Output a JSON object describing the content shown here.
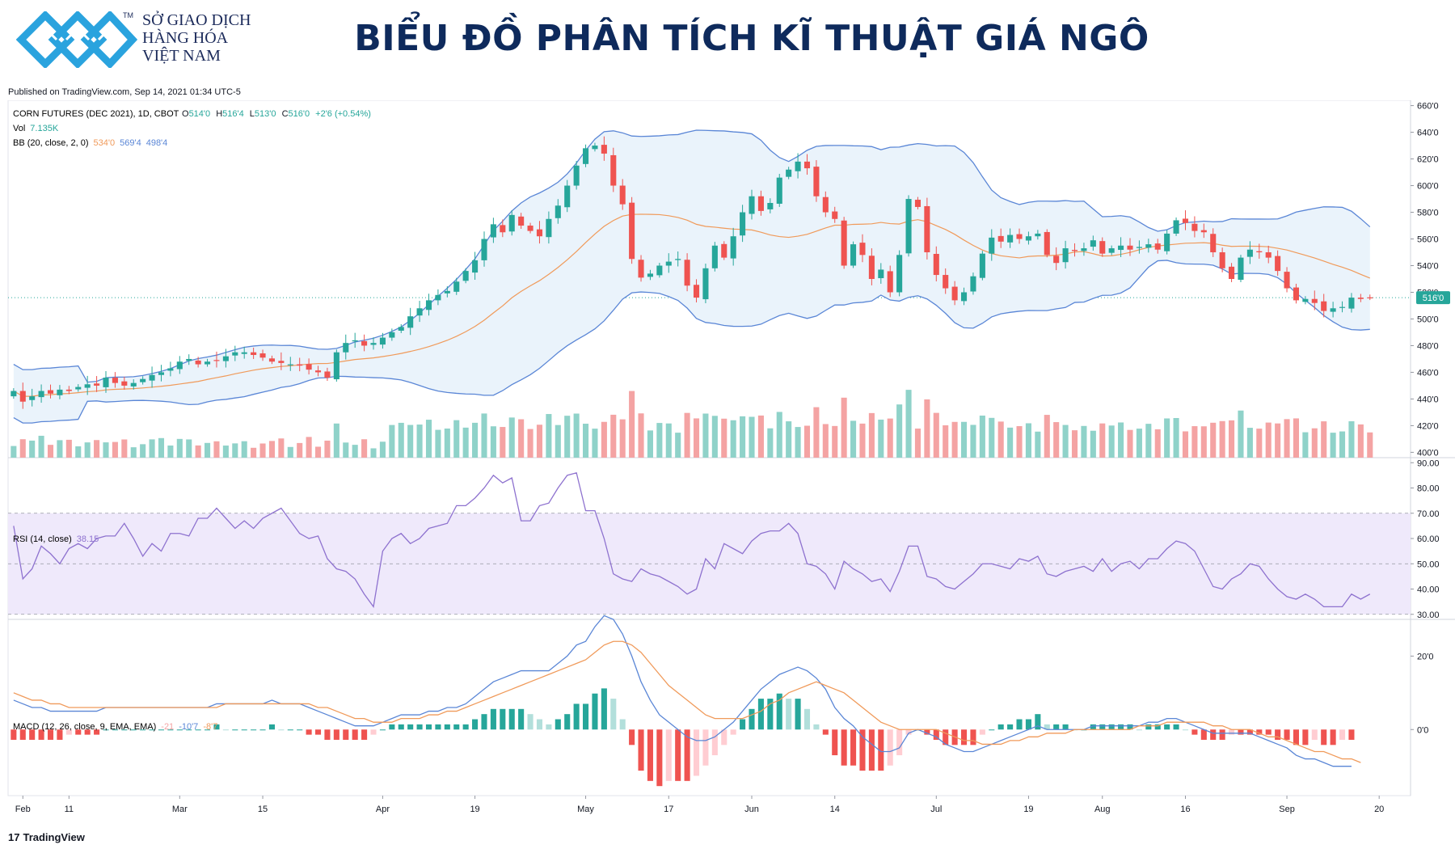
{
  "header": {
    "logo_lines": [
      "SỞ GIAO DỊCH",
      "HÀNG HÓA",
      "VIỆT NAM"
    ],
    "logo_tm": "TM",
    "title": "BIỂU ĐỒ PHÂN TÍCH KĨ THUẬT GIÁ NGÔ"
  },
  "published": "Published on TradingView.com, Sep 14, 2021 01:34 UTC-5",
  "footer": {
    "mark": "17",
    "brand": "TradingView"
  },
  "legend": {
    "main": "CORN FUTURES (DEC 2021), 1D, CBOT",
    "ohlc": [
      {
        "k": "O",
        "v": "514'0"
      },
      {
        "k": "H",
        "v": "516'4"
      },
      {
        "k": "L",
        "v": "513'0"
      },
      {
        "k": "C",
        "v": "516'0"
      }
    ],
    "change": "+2'6 (+0.54%)",
    "vol_label": "Vol",
    "vol_value": "7.135K",
    "bb_label": "BB (20, close, 2, 0)",
    "bb_values": [
      "534'0",
      "569'4",
      "498'4"
    ],
    "rsi_label": "RSI (14, close)",
    "rsi_value": "38.15",
    "macd_label": "MACD (12, 26, close, 9, EMA, EMA)",
    "macd_values": [
      "-21",
      "-10'7",
      "-8'7"
    ],
    "last_price": "516'0"
  },
  "colors": {
    "up": "#26a69a",
    "down": "#ef5350",
    "up_vol": "#8fd2c9",
    "down_vol": "#f4a3a3",
    "bb_band": "#5a86d6",
    "bb_basis": "#f09a5a",
    "bb_fill": "#eaf3fb",
    "rsi": "#8e72cf",
    "rsi_fill": "#efe9fb",
    "macd": "#5a86d6",
    "signal": "#f09a5a"
  },
  "chart_data": {
    "type": "candlestick",
    "xlabels": [
      "Feb",
      "11",
      "Mar",
      "15",
      "Apr",
      "19",
      "May",
      "17",
      "Jun",
      "14",
      "Jul",
      "19",
      "Aug",
      "16",
      "Sep",
      "20"
    ],
    "xlabel_index": [
      1,
      6,
      18,
      27,
      40,
      50,
      62,
      71,
      80,
      89,
      100,
      110,
      118,
      127,
      138,
      148
    ],
    "price_ticks": [
      "660'0",
      "640'0",
      "620'0",
      "600'0",
      "580'0",
      "560'0",
      "540'0",
      "520'0",
      "500'0",
      "480'0",
      "460'0",
      "440'0",
      "420'0",
      "400'0"
    ],
    "price_tick_values": [
      660,
      640,
      620,
      600,
      580,
      560,
      540,
      520,
      500,
      480,
      460,
      440,
      420,
      400
    ],
    "price_range": [
      396,
      664
    ],
    "rsi_ticks": [
      "90.00",
      "80.00",
      "70.00",
      "60.00",
      "50.00",
      "40.00",
      "30.00"
    ],
    "rsi_tick_values": [
      90,
      80,
      70,
      60,
      50,
      40,
      30
    ],
    "rsi_range": [
      28,
      92
    ],
    "macd_ticks": [
      "20'0",
      "0'0"
    ],
    "macd_tick_values": [
      20,
      0
    ],
    "macd_range": [
      -18,
      30
    ],
    "close": [
      446,
      438,
      442,
      446,
      444,
      447,
      446,
      449,
      451,
      450,
      456,
      452,
      450,
      452,
      455,
      458,
      460,
      463,
      468,
      470,
      466,
      468,
      469,
      472,
      475,
      475,
      473,
      471,
      468,
      467,
      466,
      465,
      462,
      460,
      456,
      475,
      482,
      484,
      480,
      482,
      486,
      490,
      494,
      502,
      508,
      514,
      518,
      521,
      528,
      536,
      544,
      560,
      571,
      565,
      578,
      570,
      566,
      562,
      575,
      585,
      600,
      615,
      628,
      630,
      624,
      600,
      586,
      545,
      531,
      534,
      540,
      543,
      545,
      525,
      516,
      538,
      555,
      546,
      562,
      580,
      592,
      581,
      587,
      606,
      612,
      618,
      613,
      592,
      580,
      575,
      540,
      556,
      548,
      530,
      537,
      520,
      548,
      590,
      584,
      550,
      533,
      523,
      514,
      520,
      532,
      549,
      561,
      558,
      563,
      560,
      562,
      564,
      548,
      542,
      553,
      551,
      553,
      559,
      549,
      553,
      555,
      552,
      554,
      556,
      552,
      564,
      574,
      572,
      566,
      565,
      550,
      538,
      530,
      546,
      552,
      550,
      546,
      536,
      523,
      514,
      515,
      512,
      506,
      508,
      509,
      516,
      515,
      516
    ],
    "rsi": [
      65,
      44,
      48,
      57,
      54,
      50,
      56,
      58,
      56,
      60,
      61,
      61,
      66,
      60,
      53,
      58,
      55,
      62,
      62,
      61,
      68,
      68,
      72,
      68,
      64,
      67,
      64,
      68,
      70,
      72,
      67,
      62,
      60,
      61,
      52,
      48,
      47,
      44,
      38,
      33,
      55,
      60,
      62,
      58,
      60,
      64,
      65,
      66,
      73,
      73,
      76,
      80,
      85,
      82,
      84,
      67,
      67,
      73,
      74,
      80,
      85,
      86,
      71,
      71,
      60,
      46,
      44,
      43,
      48,
      46,
      45,
      43,
      41,
      38,
      40,
      52,
      48,
      58,
      56,
      54,
      59,
      62,
      63,
      63,
      66,
      62,
      50,
      49,
      46,
      40,
      51,
      48,
      46,
      43,
      44,
      39,
      47,
      57,
      57,
      45,
      44,
      41,
      40,
      43,
      46,
      50,
      50,
      49,
      48,
      52,
      51,
      53,
      46,
      45,
      47,
      48,
      49,
      47,
      52,
      47,
      50,
      51,
      48,
      52,
      52,
      56,
      59,
      58,
      55,
      48,
      41,
      40,
      44,
      46,
      50,
      49,
      44,
      40,
      37,
      36,
      38,
      36,
      33,
      33,
      33,
      38,
      36,
      38
    ],
    "macd": [
      8,
      7,
      6,
      6,
      5,
      5,
      5,
      5,
      5,
      5,
      6,
      6,
      6,
      6,
      6,
      6,
      6,
      6,
      6,
      6,
      6,
      6,
      7,
      7,
      7,
      7,
      7,
      7,
      8,
      7,
      7,
      7,
      6,
      5,
      4,
      3,
      2,
      1,
      1,
      1,
      2,
      3,
      4,
      4,
      4,
      5,
      5,
      6,
      6,
      7,
      9,
      11,
      13,
      14,
      15,
      16,
      16,
      16,
      16,
      18,
      20,
      23,
      24,
      28,
      31,
      30,
      26,
      20,
      13,
      8,
      4,
      2,
      0,
      -2,
      -3,
      -3,
      -2,
      0,
      2,
      5,
      8,
      11,
      13,
      15,
      16,
      17,
      16,
      14,
      11,
      6,
      3,
      1,
      -2,
      -4,
      -6,
      -6,
      -5,
      -1,
      0,
      -1,
      -2,
      -4,
      -5,
      -6,
      -6,
      -5,
      -4,
      -3,
      -2,
      -1,
      0,
      1,
      0,
      0,
      0,
      0,
      0,
      1,
      1,
      1,
      1,
      1,
      1,
      2,
      2,
      3,
      3,
      2,
      1,
      0,
      -1,
      -1,
      -1,
      -1,
      -1,
      -2,
      -3,
      -4,
      -5,
      -7,
      -8,
      -8,
      -9,
      -10,
      -10,
      -10
    ],
    "signal": [
      10,
      9,
      8,
      8,
      7,
      7,
      6,
      6,
      6,
      6,
      6,
      6,
      6,
      6,
      6,
      6,
      6,
      6,
      6,
      6,
      6,
      6,
      6,
      7,
      7,
      7,
      7,
      7,
      7,
      7,
      7,
      7,
      7,
      6,
      6,
      5,
      4,
      3,
      3,
      2,
      2,
      2,
      3,
      3,
      3,
      4,
      4,
      5,
      5,
      6,
      7,
      8,
      9,
      10,
      11,
      12,
      13,
      14,
      15,
      16,
      17,
      18,
      19,
      21,
      23,
      24,
      24,
      23,
      21,
      18,
      15,
      12,
      10,
      8,
      6,
      4,
      3,
      3,
      3,
      3,
      4,
      5,
      7,
      8,
      10,
      11,
      12,
      13,
      12,
      11,
      10,
      8,
      6,
      4,
      2,
      1,
      0,
      0,
      0,
      0,
      0,
      -1,
      -2,
      -3,
      -3,
      -4,
      -4,
      -4,
      -3,
      -3,
      -2,
      -2,
      -1,
      -1,
      -1,
      0,
      0,
      0,
      0,
      0,
      0,
      0,
      1,
      1,
      1,
      2,
      2,
      2,
      2,
      2,
      1,
      1,
      0,
      0,
      0,
      -1,
      -2,
      -2,
      -3,
      -4,
      -5,
      -6,
      -6,
      -7,
      -8,
      -8,
      -9
    ]
  }
}
